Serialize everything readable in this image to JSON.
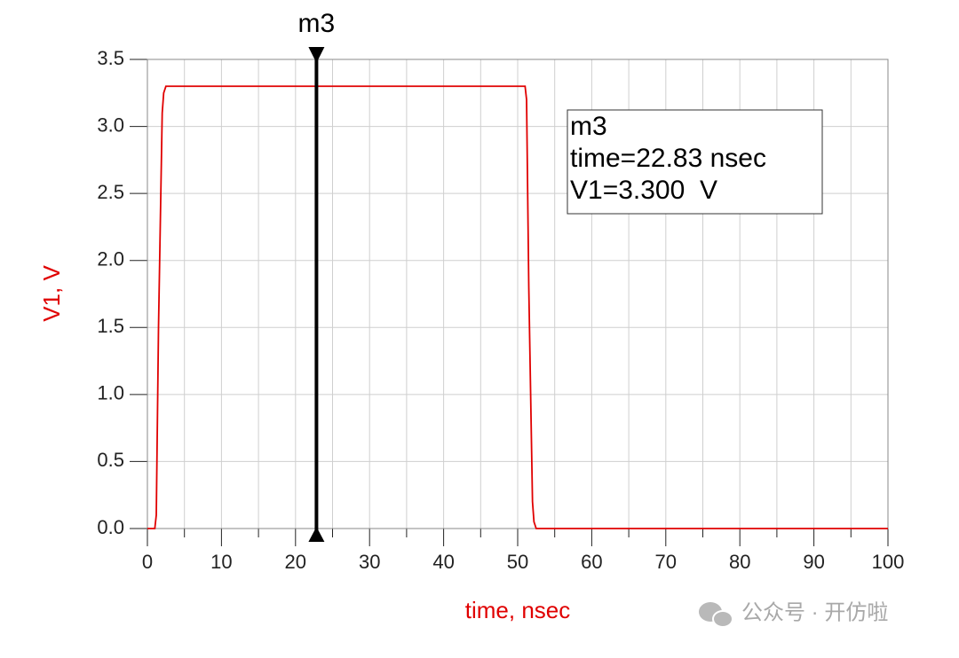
{
  "chart_data": {
    "type": "line",
    "xlabel": "time, nsec",
    "ylabel": "V1, V",
    "x": [
      0,
      1,
      1.2,
      1.5,
      2,
      2.2,
      2.5,
      51,
      51.2,
      51.5,
      52,
      52.2,
      52.5,
      100
    ],
    "series": [
      {
        "name": "V1",
        "color": "#e00000",
        "values": [
          0,
          0,
          0.1,
          1.5,
          3.1,
          3.25,
          3.3,
          3.3,
          3.2,
          1.8,
          0.2,
          0.05,
          0,
          0
        ]
      }
    ],
    "xlim": [
      0,
      100
    ],
    "xticks": [
      0,
      10,
      20,
      30,
      40,
      50,
      60,
      70,
      80,
      90,
      100
    ],
    "xminorticks": [
      5,
      15,
      25,
      35,
      45,
      55,
      65,
      75,
      85,
      95
    ],
    "ylim": [
      0,
      3.5
    ],
    "yticks": [
      {
        "value": 0,
        "label": "0.0"
      },
      0.5,
      {
        "value": 1,
        "label": "1.0"
      },
      1.5,
      {
        "value": 2,
        "label": "2.0"
      },
      2.5,
      {
        "value": 3,
        "label": "3.0"
      },
      3.5
    ],
    "grid": true,
    "marker": {
      "name": "m3",
      "x": 22.83,
      "y": 3.3,
      "readout": [
        "m3",
        "time=22.83 nsec",
        "V1=3.300  V"
      ]
    },
    "watermark": "公众号 · 开仿啦"
  }
}
